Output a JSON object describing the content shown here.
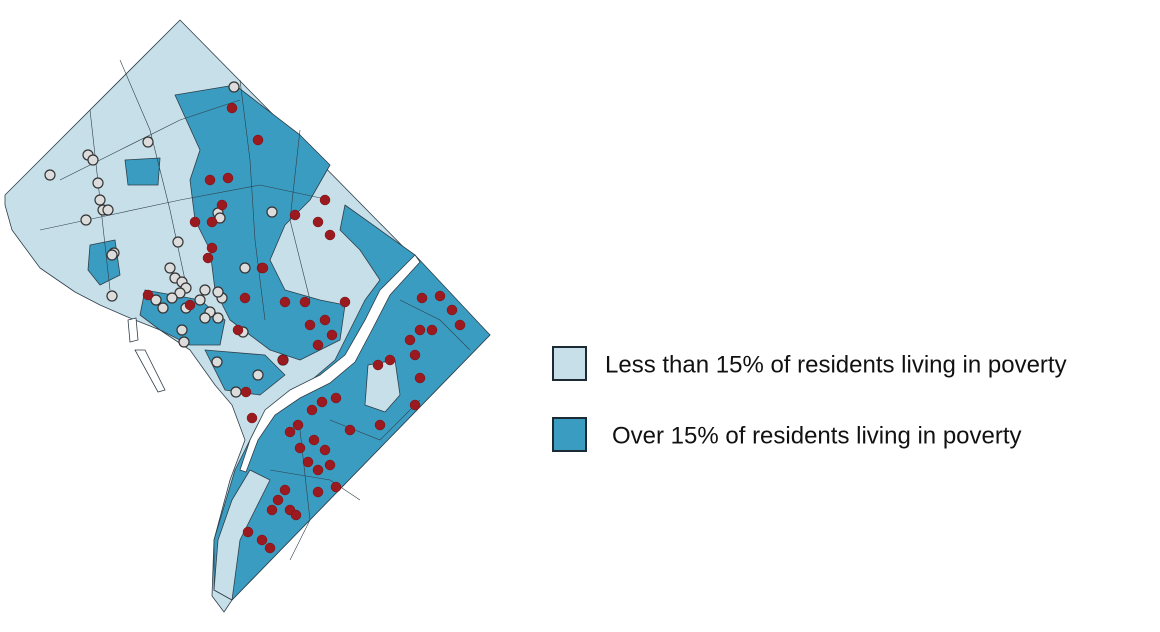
{
  "legend": {
    "items": [
      {
        "label": "Less than 15% of residents living in poverty"
      },
      {
        "label": "Over 15% of residents living in poverty"
      }
    ]
  }
}
